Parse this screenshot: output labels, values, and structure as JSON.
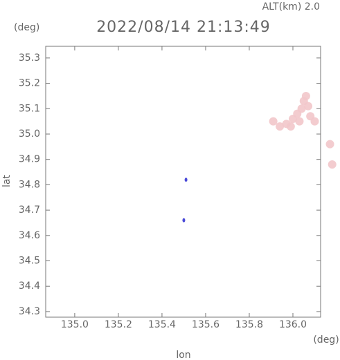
{
  "chart_data": {
    "type": "scatter",
    "title": "2022/08/14 21:13:49",
    "subtitle": "ALT(km) 2.0",
    "y_unit": "(deg)",
    "x_unit": "(deg)",
    "x_label": "lon",
    "y_label": "lat",
    "xlim": [
      134.867,
      136.127
    ],
    "ylim": [
      34.278,
      35.346
    ],
    "xticks": [
      {
        "value": 135,
        "label": "135.0"
      },
      {
        "value": 135.2,
        "label": "135.2"
      },
      {
        "value": 135.4,
        "label": "135.4"
      },
      {
        "value": 135.6,
        "label": "135.6"
      },
      {
        "value": 135.8,
        "label": "135.8"
      },
      {
        "value": 136,
        "label": "136.0"
      }
    ],
    "yticks": [
      34.3,
      34.4,
      34.5,
      34.6,
      34.7,
      34.8,
      34.9,
      {
        "value": 35,
        "label": "35.0"
      },
      35.1,
      35.2,
      35.3
    ],
    "series": [
      {
        "color": "#f2c6ca",
        "x": [
          135.91,
          135.94,
          135.97,
          136.0,
          136.02,
          136.04,
          136.05,
          136.06,
          136.07,
          136.08,
          136.1,
          136.03,
          135.99,
          136.17,
          136.18
        ],
        "values": [
          35.05,
          35.03,
          35.04,
          35.06,
          35.08,
          35.1,
          35.13,
          35.15,
          35.11,
          35.07,
          35.05,
          35.05,
          35.03,
          34.96,
          34.88
        ]
      },
      {
        "color": "#4a4ad8",
        "x": [
          135.51,
          135.5
        ],
        "values": [
          34.82,
          34.66
        ]
      }
    ]
  }
}
